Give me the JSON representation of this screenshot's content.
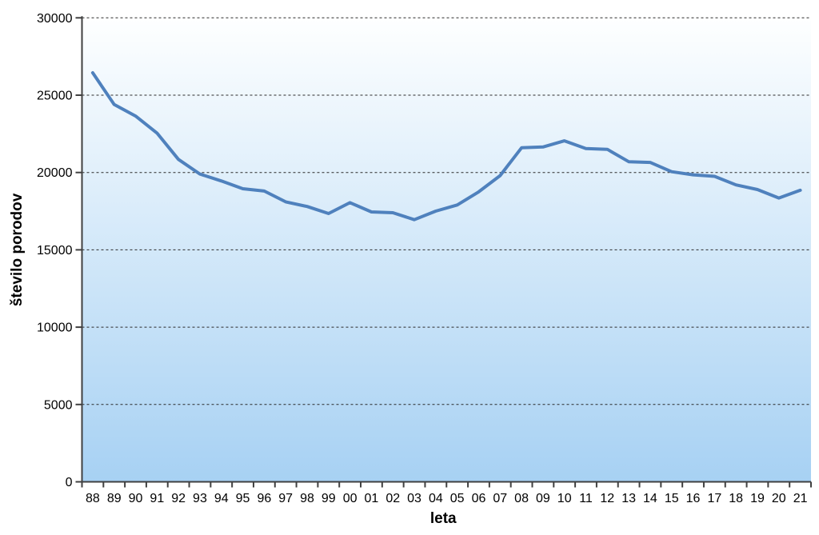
{
  "chart_data": {
    "type": "line",
    "title": "",
    "xlabel": "leta",
    "ylabel": "število porodov",
    "categories": [
      "88",
      "89",
      "90",
      "91",
      "92",
      "93",
      "94",
      "95",
      "96",
      "97",
      "98",
      "99",
      "00",
      "01",
      "02",
      "03",
      "04",
      "05",
      "06",
      "07",
      "08",
      "09",
      "10",
      "11",
      "12",
      "13",
      "14",
      "15",
      "16",
      "17",
      "18",
      "19",
      "20",
      "21"
    ],
    "series": [
      {
        "name": "število porodov",
        "values": [
          26450,
          24400,
          23650,
          22550,
          20850,
          19900,
          19450,
          18950,
          18800,
          18100,
          17800,
          17350,
          18050,
          17450,
          17400,
          16950,
          17500,
          17900,
          18750,
          19800,
          21600,
          21650,
          22050,
          21550,
          21500,
          20700,
          20650,
          20050,
          19850,
          19750,
          19200,
          18900,
          18350,
          18850
        ]
      }
    ],
    "ylim": [
      0,
      30000
    ],
    "y_ticks": [
      0,
      5000,
      10000,
      15000,
      20000,
      25000,
      30000
    ],
    "grid": "horizontal-dashed",
    "legend": "none",
    "colors": {
      "line": "#4f81bd",
      "plot_bg_top": "#feffff",
      "plot_bg_bottom": "#a7d1f3",
      "axis": "#404040",
      "gridline": "#2b2b2b",
      "text": "#000000"
    }
  }
}
